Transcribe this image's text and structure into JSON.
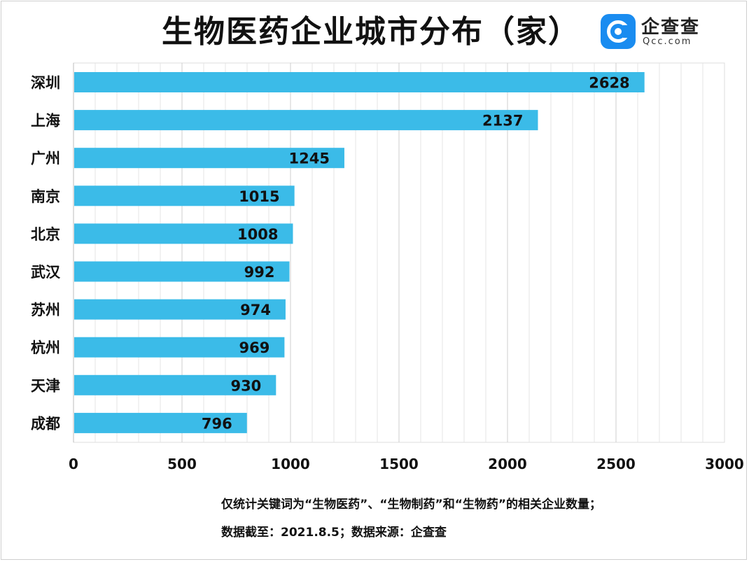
{
  "chart_data": {
    "type": "bar",
    "orientation": "horizontal",
    "title": "生物医药企业城市分布（家）",
    "categories": [
      "深圳",
      "上海",
      "广州",
      "南京",
      "北京",
      "武汉",
      "苏州",
      "杭州",
      "天津",
      "成都"
    ],
    "values": [
      2628,
      2137,
      1245,
      1015,
      1008,
      992,
      974,
      969,
      930,
      796
    ],
    "data_labels": [
      "2628",
      "2137",
      "1245",
      "1015",
      "1008",
      "992",
      "974",
      "969",
      "930",
      "796"
    ],
    "xlim": [
      0,
      3000
    ],
    "xticks": [
      0,
      500,
      1000,
      1500,
      2000,
      2500,
      3000
    ],
    "xtick_labels": [
      "0",
      "500",
      "1000",
      "1500",
      "2000",
      "2500",
      "3000"
    ],
    "xlabel": "",
    "ylabel": "",
    "grid": true,
    "legend": "none",
    "bar_color": "#3bbbe8",
    "grid_color": "#dcdcdc"
  },
  "logo": {
    "name": "企查查",
    "domain": "Qcc.com",
    "color": "#1a8cf0"
  },
  "notes": [
    "仅统计关键词为“生物医药”、“生物制药”和“生物药”的相关企业数量；",
    "数据截至：2021.8.5；数据来源：企查查"
  ]
}
